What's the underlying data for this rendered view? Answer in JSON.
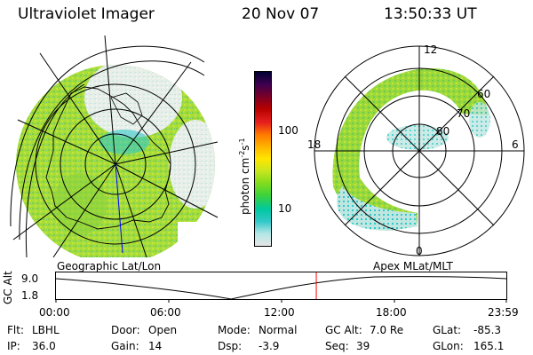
{
  "header": {
    "title": "Ultraviolet Imager",
    "date": "20 Nov 07",
    "time": "13:50:33 UT"
  },
  "colorbar": {
    "label": "photon cm-2s-1",
    "ticks": [
      "100",
      "10"
    ],
    "colors": [
      "#e6e6e6",
      "#b4e6e6",
      "#32c8c8",
      "#00c8a0",
      "#3cd23c",
      "#82dc1e",
      "#c8e61e",
      "#ffe600",
      "#ffb400",
      "#ff7800",
      "#e61e1e",
      "#b40000",
      "#780028",
      "#3c0050",
      "#000032"
    ]
  },
  "left_map": {
    "label": "Geographic Lat/Lon"
  },
  "right_map": {
    "label": "Apex  MLat/MLT",
    "mlt_labels": {
      "top": "12",
      "left": "18",
      "right": "6",
      "bottom": "0"
    },
    "lat_labels": [
      "60",
      "70",
      "80"
    ]
  },
  "altitude_plot": {
    "ylabel": "GC Alt",
    "yticks": [
      "9.0",
      "1.8"
    ],
    "xticks": [
      "00:00",
      "06:00",
      "12:00",
      "18:00",
      "23:59"
    ],
    "current_time_fraction": 0.578
  },
  "info": {
    "flt_label": "Flt:",
    "flt_value": "LBHL",
    "ip_label": "IP:",
    "ip_value": "36.0",
    "door_label": "Door:",
    "door_value": "Open",
    "gain_label": "Gain:",
    "gain_value": "14",
    "mode_label": "Mode:",
    "mode_value": "Normal",
    "dsp_label": "Dsp:",
    "dsp_value": "-3.9",
    "gcalt_label": "GC Alt:",
    "gcalt_value": "7.0 Re",
    "seq_label": "Seq:",
    "seq_value": "39",
    "glat_label": "GLat:",
    "glat_value": "-85.3",
    "glon_label": "GLon:",
    "glon_value": "165.1"
  }
}
